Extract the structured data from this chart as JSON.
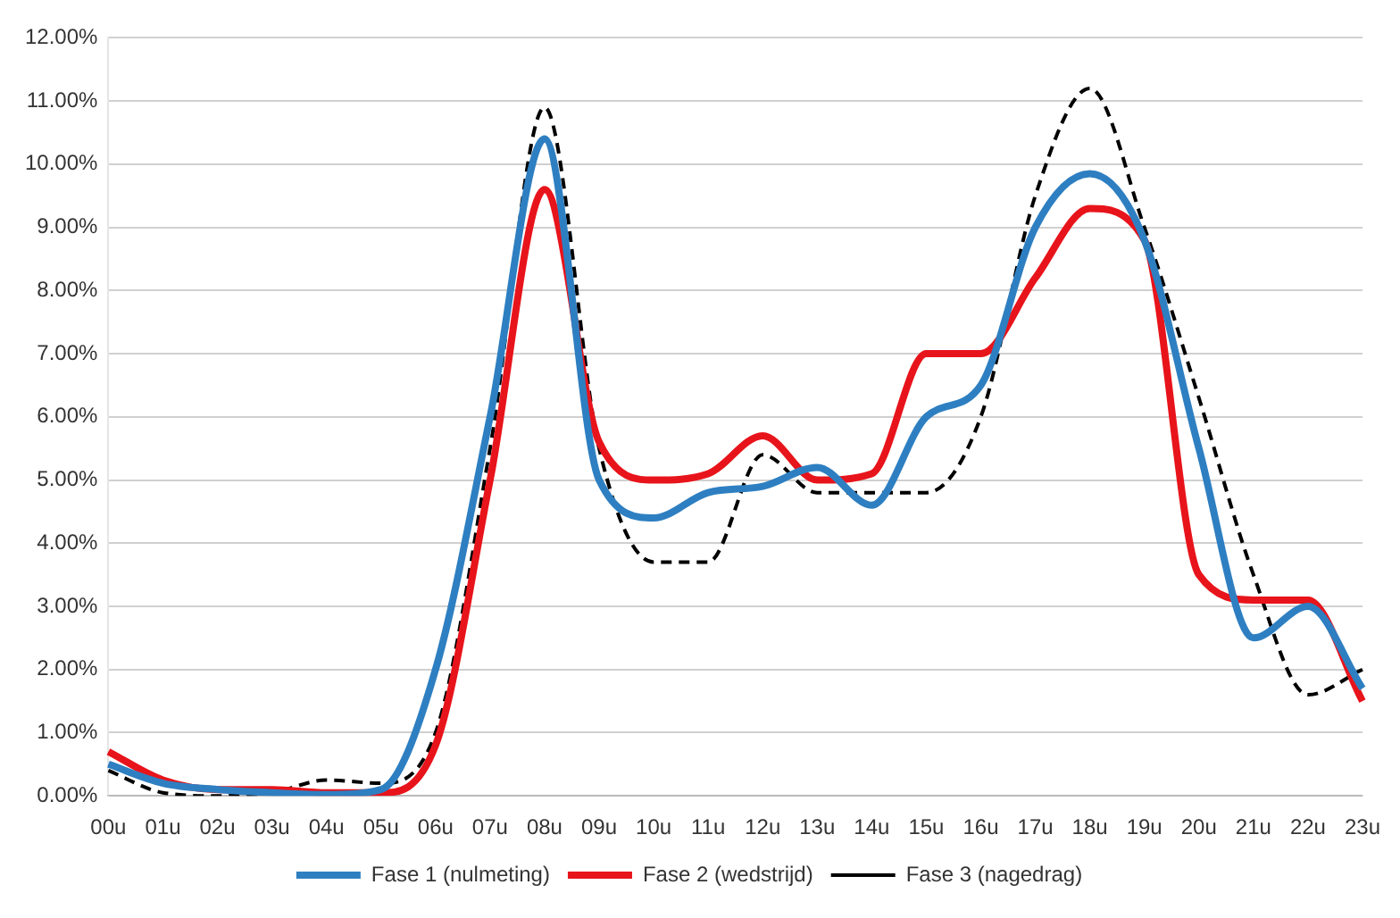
{
  "chart_data": {
    "type": "line",
    "categories": [
      "00u",
      "01u",
      "02u",
      "03u",
      "04u",
      "05u",
      "06u",
      "07u",
      "08u",
      "09u",
      "10u",
      "11u",
      "12u",
      "13u",
      "14u",
      "15u",
      "16u",
      "17u",
      "18u",
      "19u",
      "20u",
      "21u",
      "22u",
      "23u"
    ],
    "series": [
      {
        "name": "Fase 1 (nulmeting)",
        "color": "#2e7fc1",
        "line_style": "solid",
        "values": [
          0.5,
          0.2,
          0.1,
          0.05,
          0.02,
          0.1,
          2.0,
          6.0,
          10.4,
          5.0,
          4.4,
          4.8,
          4.9,
          5.2,
          4.6,
          6.0,
          6.5,
          9.0,
          9.85,
          8.8,
          5.5,
          2.5,
          3.0,
          1.7
        ]
      },
      {
        "name": "Fase 2 (wedstrijd)",
        "color": "#e8141b",
        "line_style": "solid",
        "values": [
          0.7,
          0.25,
          0.1,
          0.1,
          0.05,
          0.05,
          0.8,
          5.0,
          9.6,
          5.6,
          5.0,
          5.1,
          5.7,
          5.0,
          5.1,
          7.0,
          7.0,
          8.2,
          9.3,
          8.8,
          3.5,
          3.1,
          3.1,
          1.5
        ]
      },
      {
        "name": "Fase 3 (nagedrag)",
        "color": "#000000",
        "line_style": "dashed",
        "values": [
          0.4,
          0.05,
          0.0,
          0.05,
          0.25,
          0.2,
          1.0,
          5.5,
          10.9,
          5.5,
          3.7,
          3.7,
          5.4,
          4.8,
          4.8,
          4.8,
          6.0,
          9.5,
          11.2,
          9.0,
          6.3,
          3.5,
          1.6,
          2.0
        ]
      }
    ],
    "ylim": [
      0,
      12
    ],
    "yticks": [
      {
        "value": 0,
        "label": "0.00%"
      },
      {
        "value": 1,
        "label": "1.00%"
      },
      {
        "value": 2,
        "label": "2.00%"
      },
      {
        "value": 3,
        "label": "3.00%"
      },
      {
        "value": 4,
        "label": "4.00%"
      },
      {
        "value": 5,
        "label": "5.00%"
      },
      {
        "value": 6,
        "label": "6.00%"
      },
      {
        "value": 7,
        "label": "7.00%"
      },
      {
        "value": 8,
        "label": "8.00%"
      },
      {
        "value": 9,
        "label": "9.00%"
      },
      {
        "value": 10,
        "label": "10.00%"
      },
      {
        "value": 11,
        "label": "11.00%"
      },
      {
        "value": 12,
        "label": "12.00%"
      }
    ],
    "grid": "y",
    "legend": "bottom",
    "marker": "none"
  }
}
